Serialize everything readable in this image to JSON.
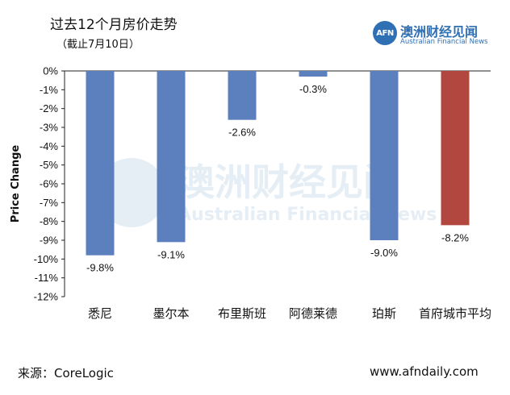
{
  "header": {
    "title": "过去12个月房价走势",
    "subtitle": "（截止7月10日）"
  },
  "logo": {
    "mark": "AFN",
    "name_cn": "澳洲财经见闻",
    "name_en": "Australian Financial News"
  },
  "watermark": {
    "name_cn": "澳洲财经见闻",
    "name_en": "Australian Financial News"
  },
  "footer": {
    "source": "来源：CoreLogic",
    "website": "www.afndaily.com"
  },
  "colors": {
    "primary_bar": "#5b80bd",
    "highlight_bar": "#b1473f",
    "brand": "#2f6fb3"
  },
  "chart_data": {
    "type": "bar",
    "ylabel": "Price Change",
    "ylim": [
      -12,
      0
    ],
    "y_ticks": [
      "0%",
      "-1%",
      "-2%",
      "-3%",
      "-4%",
      "-5%",
      "-6%",
      "-7%",
      "-8%",
      "-9%",
      "-10%",
      "-11%",
      "-12%"
    ],
    "categories": [
      "悉尼",
      "墨尔本",
      "布里斯班",
      "阿德莱德",
      "珀斯",
      "首府城市平均"
    ],
    "values": [
      -9.8,
      -9.1,
      -2.6,
      -0.3,
      -9.0,
      -8.2
    ],
    "data_labels": [
      "-9.8%",
      "-9.1%",
      "-2.6%",
      "-0.3%",
      "-9.0%",
      "-8.2%"
    ],
    "bar_colors": [
      "#5b80bd",
      "#5b80bd",
      "#5b80bd",
      "#5b80bd",
      "#5b80bd",
      "#b1473f"
    ],
    "grid": false,
    "legend": "none"
  }
}
